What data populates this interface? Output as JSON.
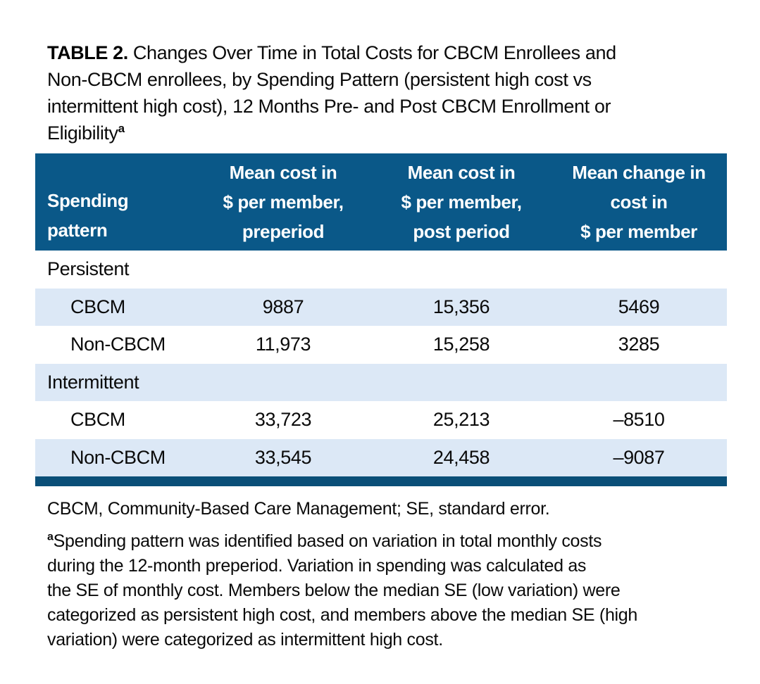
{
  "title": {
    "label": "TABLE 2.",
    "text": " Changes Over Time in Total Costs for CBCM Enrollees and\nNon-CBCM enrollees, by Spending Pattern (persistent high cost vs\nintermittent high cost), 12 Months Pre- and Post CBCM Enrollment or\nEligibility",
    "superscript": "a"
  },
  "table": {
    "header": {
      "spending_pattern": "Spending\npattern",
      "pre_period": "Mean cost in\n$ per member,\npreperiod",
      "post_period": "Mean cost in\n$ per member,\npost period",
      "change": "Mean change in\ncost in\n$ per member"
    },
    "rows": [
      {
        "label": "Persistent",
        "pre": "",
        "post": "",
        "change": ""
      },
      {
        "label": "CBCM",
        "pre": "9887",
        "post": "15,356",
        "change": "5469"
      },
      {
        "label": "Non-CBCM",
        "pre": "11,973",
        "post": "15,258",
        "change": "3285"
      },
      {
        "label": "Intermittent",
        "pre": "",
        "post": "",
        "change": ""
      },
      {
        "label": "CBCM",
        "pre": "33,723",
        "post": "25,213",
        "change": "–8510"
      },
      {
        "label": "Non-CBCM",
        "pre": "33,545",
        "post": "24,458",
        "change": "–9087"
      }
    ]
  },
  "footnotes": {
    "abbreviations": "CBCM, Community-Based Care Management; SE, standard error.",
    "marker": "a",
    "note": "Spending pattern was identified based on variation in total monthly costs\nduring the 12-month preperiod. Variation in spending was calculated as\nthe SE of monthly cost. Members below the median SE (low variation) were\ncategorized as persistent high cost, and members above the median SE (high\nvariation) were categorized as intermittent high cost."
  },
  "colors": {
    "header_bg": "#0a5888",
    "row_shade": "#dce8f6",
    "bottom_bar": "#0a4f78",
    "text": "#0a0a0a"
  }
}
